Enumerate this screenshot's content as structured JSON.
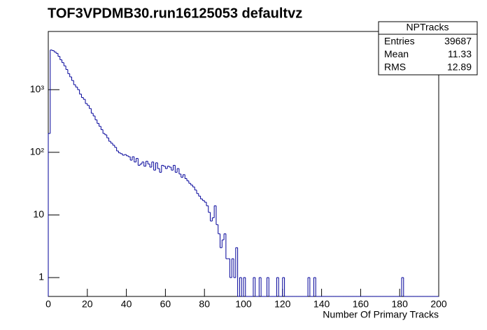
{
  "chart_data": {
    "type": "histogram",
    "log_y": true,
    "title": "TOF3VPDMB30.run16125053 defaultvz",
    "x_label": "Number Of Primary Tracks",
    "color": "#000099",
    "bins": [
      0,
      1,
      2,
      3,
      4,
      5,
      6,
      7,
      8,
      9,
      10,
      11,
      12,
      13,
      14,
      15,
      16,
      17,
      18,
      19,
      20,
      21,
      22,
      23,
      24,
      25,
      26,
      27,
      28,
      29,
      30,
      31,
      32,
      33,
      34,
      35,
      36,
      37,
      38,
      39,
      40,
      41,
      42,
      43,
      44,
      45,
      46,
      47,
      48,
      49,
      50,
      51,
      52,
      53,
      54,
      55,
      56,
      57,
      58,
      59,
      60,
      61,
      62,
      63,
      64,
      65,
      66,
      67,
      68,
      69,
      70,
      71,
      72,
      73,
      74,
      75,
      76,
      77,
      78,
      79,
      80,
      81,
      82,
      83,
      84,
      85,
      86,
      87,
      88,
      89,
      90,
      91,
      92,
      93,
      94,
      95,
      96,
      97,
      98,
      99,
      100,
      101,
      102,
      103,
      104,
      105,
      106,
      107,
      108,
      109,
      110,
      111,
      112,
      113,
      114,
      115,
      116,
      117,
      118,
      119,
      120,
      121,
      122,
      123,
      124,
      125,
      126,
      127,
      128,
      129,
      130,
      131,
      132,
      133,
      134,
      135,
      136,
      137,
      138,
      139,
      140,
      141,
      142,
      143,
      144,
      145,
      146,
      147,
      148,
      149,
      150,
      151,
      152,
      153,
      154,
      155,
      156,
      157,
      158,
      159,
      160,
      161,
      162,
      163,
      164,
      165,
      166,
      167,
      168,
      169,
      170,
      171,
      172,
      173,
      174,
      175,
      176,
      177,
      178,
      179,
      180,
      181,
      182,
      183,
      184,
      185,
      186,
      187,
      188,
      189,
      190,
      191,
      192,
      193,
      194,
      195,
      196,
      197,
      198,
      199,
      200
    ],
    "values": [
      200,
      4300,
      4200,
      4000,
      3800,
      3400,
      3000,
      2700,
      2400,
      2100,
      1800,
      1600,
      1400,
      1200,
      1100,
      1000,
      850,
      750,
      700,
      600,
      560,
      500,
      420,
      380,
      330,
      290,
      260,
      230,
      200,
      190,
      170,
      150,
      140,
      130,
      120,
      105,
      98,
      95,
      90,
      92,
      88,
      85,
      75,
      85,
      70,
      80,
      62,
      65,
      70,
      60,
      72,
      65,
      58,
      70,
      52,
      68,
      55,
      48,
      62,
      60,
      55,
      60,
      58,
      52,
      62,
      48,
      55,
      45,
      40,
      44,
      38,
      35,
      32,
      30,
      28,
      25,
      22,
      20,
      18,
      17,
      16,
      14,
      11,
      8,
      9,
      14,
      7,
      5,
      3,
      4,
      5,
      2,
      2,
      1,
      2,
      1,
      3,
      0,
      1,
      0,
      1,
      0,
      0,
      0,
      0,
      1,
      0,
      0,
      1,
      0,
      0,
      0,
      1,
      0,
      0,
      0,
      0,
      1,
      0,
      0,
      1,
      0,
      0,
      0,
      0,
      0,
      0,
      0,
      0,
      0,
      0,
      0,
      0,
      1,
      0,
      0,
      1,
      0,
      0,
      0,
      0,
      0,
      0,
      0,
      0,
      0,
      0,
      0,
      0,
      0,
      0,
      0,
      0,
      0,
      0,
      0,
      0,
      0,
      0,
      0,
      0,
      0,
      0,
      0,
      0,
      0,
      0,
      0,
      0,
      0,
      0,
      0,
      0,
      0,
      0,
      0,
      0,
      0,
      0,
      0,
      0,
      1,
      0,
      0,
      0,
      0,
      0,
      0,
      0,
      0,
      0,
      0,
      0,
      0,
      0,
      0,
      0,
      0,
      0,
      0
    ],
    "xlim": [
      0,
      200
    ],
    "xticks": [
      0,
      20,
      40,
      60,
      80,
      100,
      120,
      140,
      160,
      180,
      200
    ],
    "ylim": [
      0.5,
      8500
    ],
    "yticks": [
      1,
      10,
      {
        "value": 100,
        "label": "10²"
      },
      {
        "value": 1000,
        "label": "10³"
      }
    ],
    "stats": {
      "title": "NPTracks",
      "rows": [
        [
          "Entries",
          "39687"
        ],
        [
          "Mean",
          "11.33"
        ],
        [
          "RMS",
          "12.89"
        ]
      ]
    }
  }
}
